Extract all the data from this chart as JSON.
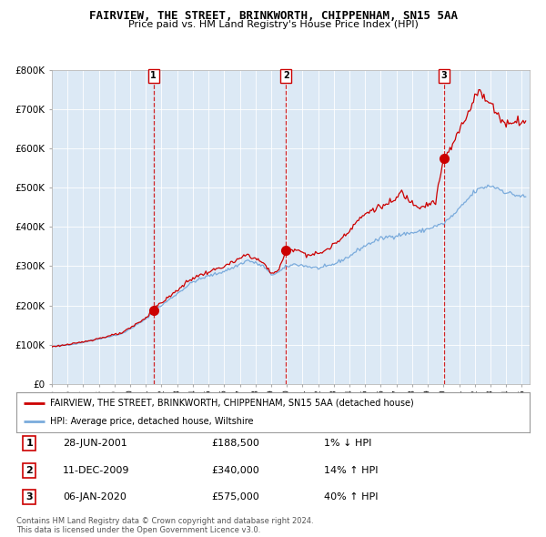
{
  "title": "FAIRVIEW, THE STREET, BRINKWORTH, CHIPPENHAM, SN15 5AA",
  "subtitle": "Price paid vs. HM Land Registry's House Price Index (HPI)",
  "bg_color": "#dce9f5",
  "outer_bg": "#ffffff",
  "hpi_color": "#7aabdc",
  "price_color": "#cc0000",
  "sales": [
    {
      "label": "1",
      "date_str": "28-JUN-2001",
      "date_x": 2001.49,
      "price": 188500,
      "hpi_note": "1% ↓ HPI"
    },
    {
      "label": "2",
      "date_str": "11-DEC-2009",
      "date_x": 2009.94,
      "price": 340000,
      "hpi_note": "14% ↑ HPI"
    },
    {
      "label": "3",
      "date_str": "06-JAN-2020",
      "date_x": 2020.03,
      "price": 575000,
      "hpi_note": "40% ↑ HPI"
    }
  ],
  "xmin": 1995.0,
  "xmax": 2025.5,
  "ymin": 0,
  "ymax": 800000,
  "yticks": [
    0,
    100000,
    200000,
    300000,
    400000,
    500000,
    600000,
    700000,
    800000
  ],
  "legend_property": "FAIRVIEW, THE STREET, BRINKWORTH, CHIPPENHAM, SN15 5AA (detached house)",
  "legend_hpi": "HPI: Average price, detached house, Wiltshire",
  "footer1": "Contains HM Land Registry data © Crown copyright and database right 2024.",
  "footer2": "This data is licensed under the Open Government Licence v3.0."
}
